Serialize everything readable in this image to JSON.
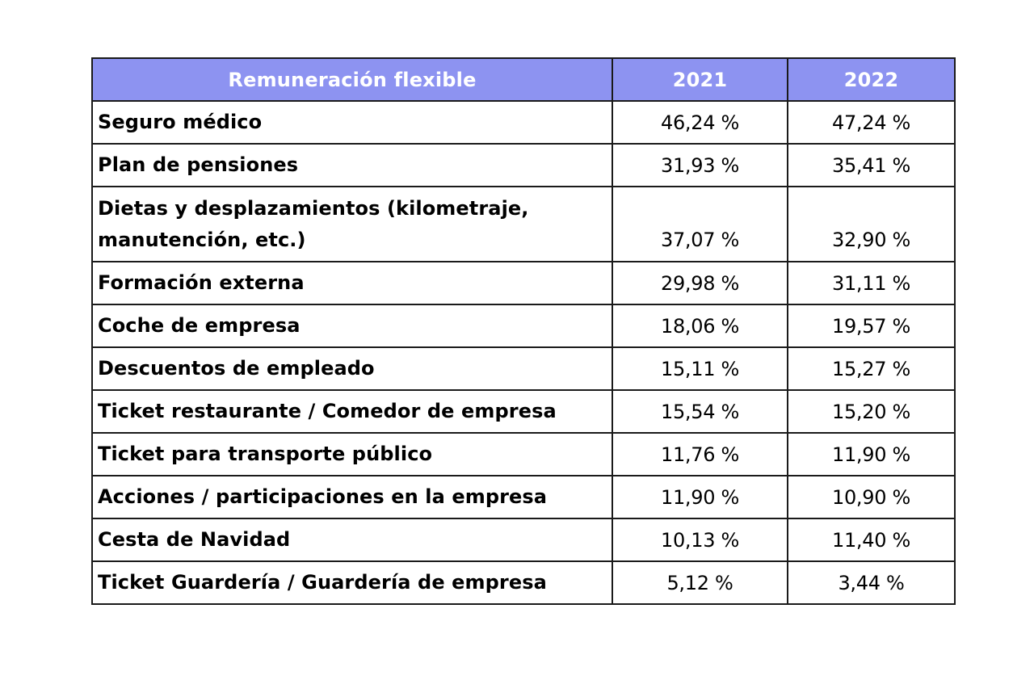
{
  "colors": {
    "header_background": "#8d93f1",
    "header_text": "#ffffff",
    "border": "#1a1a1a"
  },
  "table": {
    "headers": [
      "Remuneración flexible",
      "2021",
      "2022"
    ],
    "rows": [
      {
        "name": "Seguro médico",
        "y2021": "46,24 %",
        "y2022": "47,24 %"
      },
      {
        "name": "Plan de pensiones",
        "y2021": "31,93 %",
        "y2022": "35,41 %"
      },
      {
        "name": "Dietas y desplazamientos (kilometraje, manutención, etc.)",
        "y2021": "37,07 %",
        "y2022": "32,90 %"
      },
      {
        "name": "Formación externa",
        "y2021": "29,98 %",
        "y2022": "31,11 %"
      },
      {
        "name": "Coche de empresa",
        "y2021": "18,06 %",
        "y2022": "19,57 %"
      },
      {
        "name": "Descuentos de empleado",
        "y2021": "15,11 %",
        "y2022": "15,27 %"
      },
      {
        "name": "Ticket restaurante / Comedor de empresa",
        "y2021": "15,54 %",
        "y2022": "15,20 %"
      },
      {
        "name": "Ticket para transporte público",
        "y2021": "11,76 %",
        "y2022": "11,90 %"
      },
      {
        "name": "Acciones / participaciones en la empresa",
        "y2021": "11,90 %",
        "y2022": "10,90 %"
      },
      {
        "name": "Cesta de Navidad",
        "y2021": "10,13 %",
        "y2022": "11,40 %"
      },
      {
        "name": "Ticket Guardería / Guardería de empresa",
        "y2021": "5,12 %",
        "y2022": "3,44 %"
      }
    ]
  }
}
